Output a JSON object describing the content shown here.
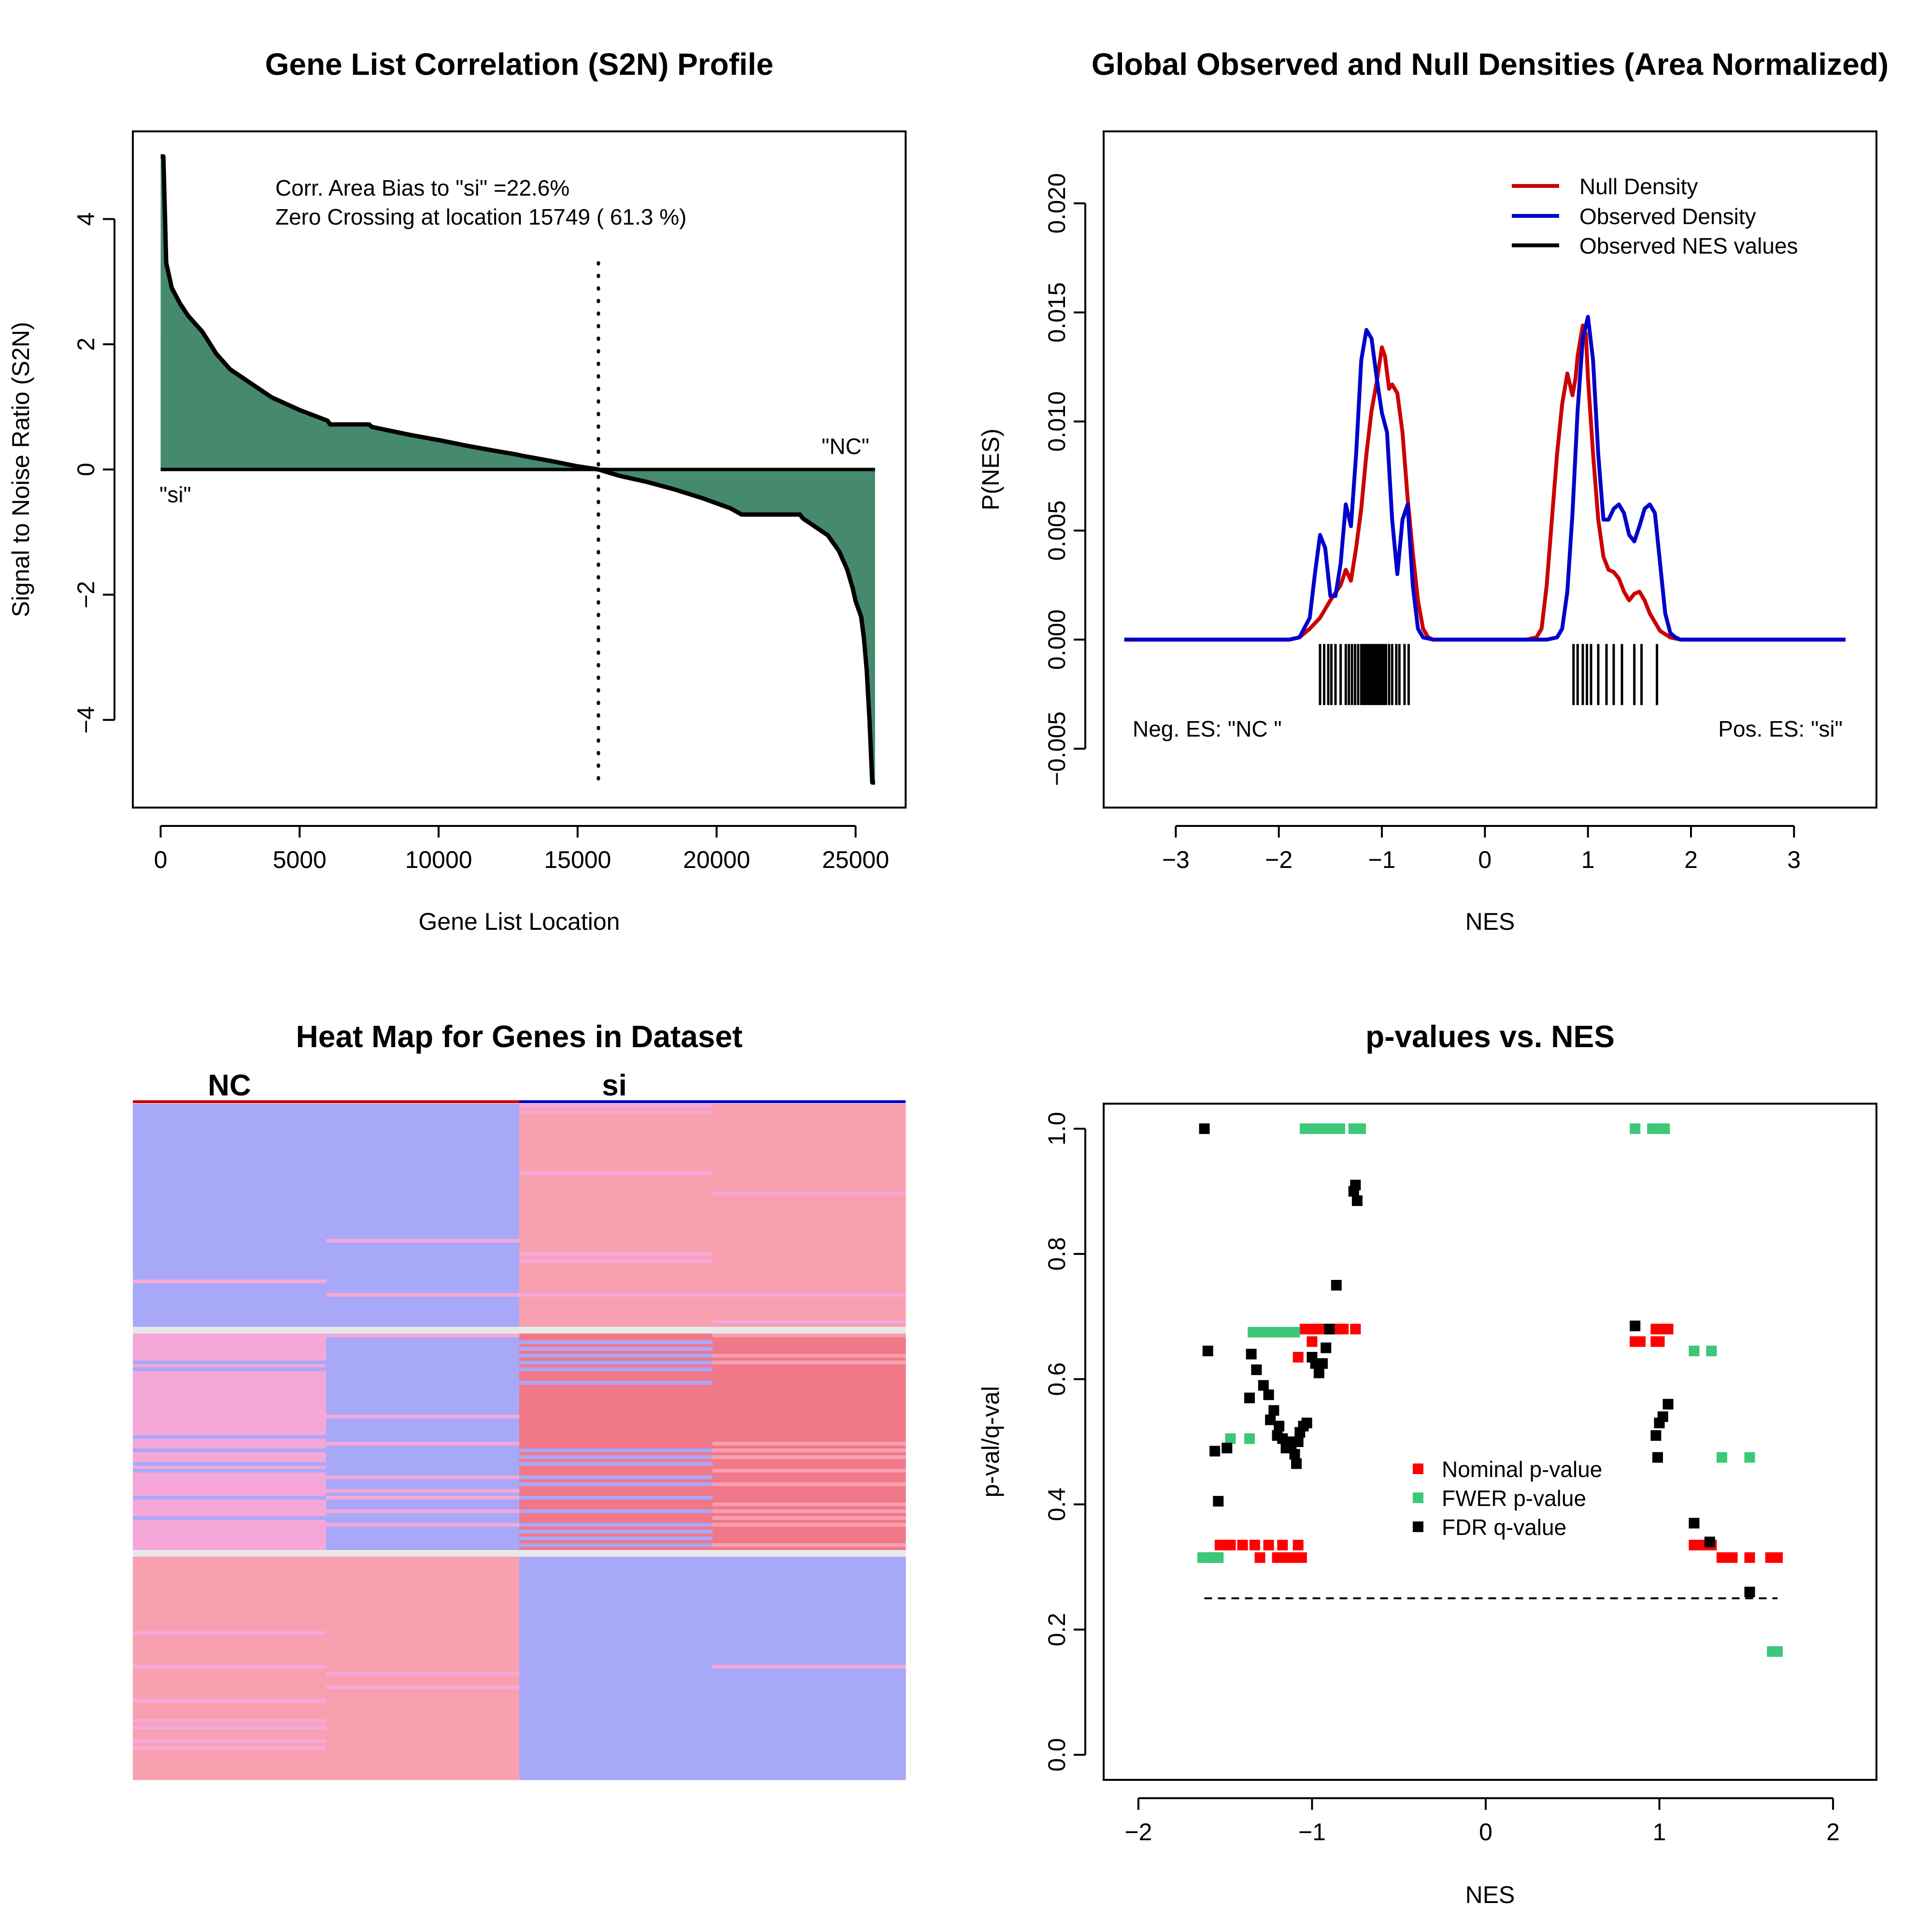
{
  "chart_data": [
    {
      "type": "area",
      "title": "Gene List Correlation (S2N) Profile",
      "xlabel": "Gene List Location",
      "ylabel": "Signal to Noise Ratio (S2N)",
      "xlim": [
        -1000,
        26800
      ],
      "ylim": [
        -5.4,
        5.4
      ],
      "xticks": [
        0,
        5000,
        10000,
        15000,
        20000,
        25000
      ],
      "yticks": [
        -4,
        -2,
        0,
        2,
        4
      ],
      "fill_color": "#468A6E",
      "annotations": [
        "Corr. Area Bias to \"si\" =22.6%",
        "Zero Crossing at location  15749  ( 61.3  %)"
      ],
      "label_left": "\"si\"",
      "label_right": "\"NC\"",
      "zero_crossing": 15749,
      "profile": {
        "x": [
          0,
          100,
          200,
          400,
          700,
          1000,
          1500,
          2000,
          2500,
          3000,
          3500,
          4000,
          5000,
          6000,
          6100,
          7500,
          7600,
          9000,
          10000,
          11000,
          12000,
          12800,
          13000,
          14000,
          15000,
          15749,
          16500,
          17500,
          18500,
          19500,
          20500,
          20900,
          21000,
          22000,
          23000,
          23100,
          24000,
          24400,
          24700,
          24900,
          25000,
          25200,
          25300,
          25400,
          25500,
          25600,
          25700
        ],
        "y": [
          5.0,
          5.0,
          3.3,
          2.9,
          2.65,
          2.45,
          2.2,
          1.85,
          1.6,
          1.45,
          1.3,
          1.15,
          0.95,
          0.78,
          0.72,
          0.72,
          0.68,
          0.55,
          0.47,
          0.38,
          0.3,
          0.24,
          0.22,
          0.14,
          0.05,
          0.0,
          -0.1,
          -0.2,
          -0.32,
          -0.46,
          -0.62,
          -0.72,
          -0.72,
          -0.72,
          -0.72,
          -0.78,
          -1.05,
          -1.3,
          -1.6,
          -1.9,
          -2.1,
          -2.35,
          -2.7,
          -3.2,
          -4.0,
          -5.0,
          -5.0
        ]
      }
    },
    {
      "type": "line",
      "title": "Global Observed and Null Densities (Area Normalized)",
      "xlabel": "NES",
      "ylabel": "P(NES)",
      "xlim": [
        -3.7,
        3.8
      ],
      "ylim": [
        -0.0077,
        0.0233
      ],
      "xticks": [
        -3,
        -2,
        -1,
        0,
        1,
        2,
        3
      ],
      "yticks": [
        -0.005,
        0.0,
        0.005,
        0.01,
        0.015,
        0.02
      ],
      "ytick_labels": [
        "-0.005",
        "0.000",
        "0.005",
        "0.010",
        "0.015",
        "0.020"
      ],
      "legend": [
        "Null Density",
        "Observed Density",
        "Observed NES values"
      ],
      "legend_colors": [
        "#CC0000",
        "#0000CC",
        "#000000"
      ],
      "legend_position": "top-right",
      "label_left": "Neg. ES: \"NC \"",
      "label_right": "Pos. ES: \"si\"",
      "series": [
        {
          "name": "Null Density",
          "color": "#CC0000",
          "x": [
            -3.5,
            -2.0,
            -1.9,
            -1.8,
            -1.7,
            -1.6,
            -1.5,
            -1.4,
            -1.35,
            -1.3,
            -1.25,
            -1.2,
            -1.15,
            -1.1,
            -1.05,
            -1.0,
            -0.97,
            -0.93,
            -0.9,
            -0.85,
            -0.8,
            -0.75,
            -0.7,
            -0.65,
            -0.6,
            -0.55,
            -0.5,
            -0.4,
            0.4,
            0.5,
            0.55,
            0.6,
            0.65,
            0.7,
            0.75,
            0.8,
            0.85,
            0.88,
            0.9,
            0.95,
            0.98,
            1.0,
            1.05,
            1.1,
            1.15,
            1.2,
            1.25,
            1.3,
            1.35,
            1.4,
            1.45,
            1.5,
            1.55,
            1.6,
            1.7,
            1.8,
            1.9,
            2.0,
            3.5
          ],
          "y": [
            0.0,
            0.0,
            0.0,
            0.0001,
            0.0005,
            0.001,
            0.0018,
            0.0025,
            0.0032,
            0.0027,
            0.0042,
            0.006,
            0.0085,
            0.0105,
            0.0118,
            0.0134,
            0.013,
            0.0115,
            0.0117,
            0.0113,
            0.0095,
            0.0065,
            0.004,
            0.0018,
            0.0005,
            0.0001,
            0.0,
            0.0,
            0.0,
            0.0001,
            0.0005,
            0.0025,
            0.0055,
            0.0085,
            0.0108,
            0.0122,
            0.0112,
            0.012,
            0.013,
            0.0144,
            0.014,
            0.012,
            0.0085,
            0.0055,
            0.0038,
            0.0032,
            0.0031,
            0.0028,
            0.0022,
            0.0018,
            0.0021,
            0.0022,
            0.0018,
            0.0012,
            0.0004,
            0.0001,
            0.0,
            0.0,
            0.0
          ]
        },
        {
          "name": "Observed Density",
          "color": "#0000CC",
          "x": [
            -3.5,
            -1.9,
            -1.8,
            -1.7,
            -1.65,
            -1.6,
            -1.55,
            -1.5,
            -1.45,
            -1.4,
            -1.35,
            -1.3,
            -1.25,
            -1.2,
            -1.15,
            -1.1,
            -1.05,
            -1.0,
            -0.95,
            -0.9,
            -0.85,
            -0.8,
            -0.75,
            -0.7,
            -0.65,
            -0.6,
            -0.5,
            0.5,
            0.6,
            0.7,
            0.75,
            0.8,
            0.85,
            0.9,
            0.95,
            1.0,
            1.05,
            1.1,
            1.15,
            1.2,
            1.25,
            1.3,
            1.35,
            1.4,
            1.45,
            1.5,
            1.55,
            1.6,
            1.65,
            1.7,
            1.75,
            1.8,
            1.85,
            1.9,
            2.0,
            3.5
          ],
          "y": [
            0.0,
            0.0,
            0.0001,
            0.001,
            0.003,
            0.0048,
            0.0042,
            0.002,
            0.002,
            0.0035,
            0.0062,
            0.0052,
            0.0085,
            0.0128,
            0.0142,
            0.0138,
            0.012,
            0.0104,
            0.0095,
            0.0055,
            0.003,
            0.0055,
            0.0062,
            0.0025,
            0.0005,
            0.0001,
            0.0,
            0.0,
            0.0,
            0.0001,
            0.0005,
            0.0022,
            0.0058,
            0.0105,
            0.0138,
            0.0148,
            0.0128,
            0.0085,
            0.0055,
            0.0055,
            0.006,
            0.0062,
            0.0058,
            0.0048,
            0.0045,
            0.0052,
            0.006,
            0.0062,
            0.0058,
            0.0035,
            0.0012,
            0.0003,
            0.0001,
            0.0,
            0.0,
            0.0
          ]
        }
      ],
      "rug": [
        -1.6,
        -1.56,
        -1.52,
        -1.49,
        -1.45,
        -1.4,
        -1.35,
        -1.32,
        -1.29,
        -1.26,
        -1.23,
        -1.2,
        -1.18,
        -1.16,
        -1.14,
        -1.12,
        -1.1,
        -1.08,
        -1.06,
        -1.04,
        -1.02,
        -1.0,
        -0.98,
        -0.96,
        -0.93,
        -0.9,
        -0.86,
        -0.83,
        -0.78,
        -0.74,
        0.86,
        0.9,
        0.95,
        0.99,
        1.03,
        1.1,
        1.18,
        1.25,
        1.33,
        1.45,
        1.52,
        1.67
      ],
      "rug_range": [
        -0.003,
        -0.0002
      ]
    },
    {
      "type": "heatmap",
      "title": "Heat Map for Genes in Dataset",
      "columns": [
        "NC",
        "si"
      ],
      "samples_per_group": 2,
      "colors": {
        "blue": "#A8A8F8",
        "pink": "#F5A8D8",
        "red": "#F8A0B0",
        "deep_red": "#F07888",
        "separator": "#E8E8E8"
      },
      "group_bar_colors": [
        "#CC0000",
        "#0000CC"
      ],
      "blocks": [
        {
          "fraction": 0.33,
          "cols": [
            "blue",
            "blue",
            "red",
            "red"
          ]
        },
        {
          "fraction": 0.01,
          "cols": [
            "separator",
            "separator",
            "separator",
            "separator"
          ]
        },
        {
          "fraction": 0.32,
          "cols": [
            "pink",
            "blue",
            "deep_red",
            "deep_red"
          ],
          "striped": true
        },
        {
          "fraction": 0.01,
          "cols": [
            "separator",
            "separator",
            "separator",
            "separator"
          ]
        },
        {
          "fraction": 0.33,
          "cols": [
            "red",
            "red",
            "blue",
            "blue"
          ]
        }
      ]
    },
    {
      "type": "scatter",
      "title": "p-values vs. NES",
      "xlabel": "NES",
      "ylabel": "p-val/q-val",
      "xlim": [
        -2.2,
        2.25
      ],
      "ylim": [
        -0.04,
        1.04
      ],
      "xticks": [
        -2,
        -1,
        0,
        1,
        2
      ],
      "yticks": [
        0.0,
        0.2,
        0.4,
        0.6,
        0.8,
        1.0
      ],
      "ytick_labels": [
        "0.0",
        "0.2",
        "0.4",
        "0.6",
        "0.8",
        "1.0"
      ],
      "legend": [
        "Nominal p-value",
        "FWER p-value",
        "FDR q-value"
      ],
      "legend_position": "center",
      "threshold": {
        "y": 0.25,
        "x": [
          -1.62,
          1.68
        ]
      },
      "series": [
        {
          "name": "Nominal p-value",
          "color": "#FF0000",
          "points": [
            [
              -1.58,
              0.315
            ],
            [
              -1.55,
              0.315
            ],
            [
              -1.53,
              0.335
            ],
            [
              -1.5,
              0.335
            ],
            [
              -1.47,
              0.335
            ],
            [
              -1.4,
              0.335
            ],
            [
              -1.33,
              0.335
            ],
            [
              -1.3,
              0.315
            ],
            [
              -1.25,
              0.335
            ],
            [
              -1.2,
              0.315
            ],
            [
              -1.17,
              0.335
            ],
            [
              -1.14,
              0.315
            ],
            [
              -1.1,
              0.315
            ],
            [
              -1.08,
              0.335
            ],
            [
              -1.06,
              0.315
            ],
            [
              -1.08,
              0.635
            ],
            [
              -1.04,
              0.68
            ],
            [
              -1.0,
              0.66
            ],
            [
              -0.98,
              0.68
            ],
            [
              -0.95,
              0.68
            ],
            [
              -0.9,
              0.68
            ],
            [
              -0.86,
              0.68
            ],
            [
              -0.82,
              0.68
            ],
            [
              -0.75,
              0.68
            ],
            [
              0.86,
              0.66
            ],
            [
              0.89,
              0.66
            ],
            [
              0.98,
              0.66
            ],
            [
              1.0,
              0.66
            ],
            [
              0.98,
              0.68
            ],
            [
              1.02,
              0.68
            ],
            [
              1.05,
              0.68
            ],
            [
              1.2,
              0.335
            ],
            [
              1.24,
              0.335
            ],
            [
              1.3,
              0.335
            ],
            [
              1.36,
              0.315
            ],
            [
              1.42,
              0.315
            ],
            [
              1.52,
              0.315
            ],
            [
              1.64,
              0.315
            ],
            [
              1.68,
              0.315
            ]
          ]
        },
        {
          "name": "FWER p-value",
          "color": "#3CC878",
          "points": [
            [
              -1.63,
              0.315
            ],
            [
              -1.6,
              0.315
            ],
            [
              -1.57,
              0.315
            ],
            [
              -1.54,
              0.315
            ],
            [
              -1.47,
              0.505
            ],
            [
              -1.36,
              0.505
            ],
            [
              -1.34,
              0.675
            ],
            [
              -1.28,
              0.675
            ],
            [
              -1.22,
              0.675
            ],
            [
              -1.16,
              0.675
            ],
            [
              -1.1,
              0.675
            ],
            [
              -1.04,
              1.0
            ],
            [
              -1.0,
              1.0
            ],
            [
              -0.96,
              1.0
            ],
            [
              -0.92,
              1.0
            ],
            [
              -0.88,
              1.0
            ],
            [
              -0.84,
              1.0
            ],
            [
              -0.76,
              1.0
            ],
            [
              -0.72,
              1.0
            ],
            [
              0.86,
              1.0
            ],
            [
              0.96,
              1.0
            ],
            [
              1.0,
              1.0
            ],
            [
              1.03,
              1.0
            ],
            [
              1.2,
              0.645
            ],
            [
              1.3,
              0.645
            ],
            [
              1.36,
              0.475
            ],
            [
              1.52,
              0.475
            ],
            [
              1.65,
              0.165
            ],
            [
              1.68,
              0.165
            ]
          ]
        },
        {
          "name": "FDR q-value",
          "color": "#000000",
          "points": [
            [
              -1.62,
              1.0
            ],
            [
              -1.6,
              0.645
            ],
            [
              -1.56,
              0.485
            ],
            [
              -1.54,
              0.405
            ],
            [
              -1.49,
              0.49
            ],
            [
              -1.36,
              0.57
            ],
            [
              -1.35,
              0.64
            ],
            [
              -1.32,
              0.615
            ],
            [
              -1.28,
              0.59
            ],
            [
              -1.25,
              0.575
            ],
            [
              -1.24,
              0.535
            ],
            [
              -1.22,
              0.55
            ],
            [
              -1.2,
              0.51
            ],
            [
              -1.19,
              0.525
            ],
            [
              -1.17,
              0.505
            ],
            [
              -1.15,
              0.49
            ],
            [
              -1.14,
              0.5
            ],
            [
              -1.12,
              0.49
            ],
            [
              -1.1,
              0.48
            ],
            [
              -1.09,
              0.465
            ],
            [
              -1.08,
              0.5
            ],
            [
              -1.07,
              0.515
            ],
            [
              -1.05,
              0.525
            ],
            [
              -1.03,
              0.53
            ],
            [
              -1.0,
              0.635
            ],
            [
              -0.98,
              0.625
            ],
            [
              -0.96,
              0.61
            ],
            [
              -0.94,
              0.625
            ],
            [
              -0.92,
              0.65
            ],
            [
              -0.9,
              0.68
            ],
            [
              -0.86,
              0.75
            ],
            [
              -0.76,
              0.9
            ],
            [
              -0.75,
              0.91
            ],
            [
              -0.74,
              0.885
            ],
            [
              0.86,
              0.685
            ],
            [
              0.98,
              0.51
            ],
            [
              0.99,
              0.475
            ],
            [
              1.0,
              0.53
            ],
            [
              1.02,
              0.54
            ],
            [
              1.05,
              0.56
            ],
            [
              1.2,
              0.37
            ],
            [
              1.29,
              0.34
            ],
            [
              1.52,
              0.26
            ]
          ]
        }
      ]
    }
  ]
}
